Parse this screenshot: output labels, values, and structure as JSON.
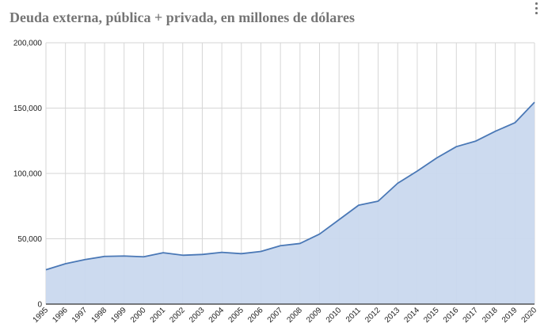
{
  "chart_data": {
    "type": "area",
    "title": "Deuda externa, pública + privada, en millones de dólares",
    "x": [
      "1995",
      "1996",
      "1997",
      "1998",
      "1999",
      "2000",
      "2001",
      "2002",
      "2003",
      "2004",
      "2005",
      "2006",
      "2007",
      "2008",
      "2009",
      "2010",
      "2011",
      "2012",
      "2013",
      "2014",
      "2015",
      "2016",
      "2017",
      "2018",
      "2019",
      "2020"
    ],
    "series": [
      {
        "values": [
          26300,
          30900,
          34100,
          36500,
          36800,
          36200,
          39300,
          37400,
          38000,
          39600,
          38600,
          40300,
          44700,
          46400,
          53600,
          64600,
          75700,
          78800,
          92500,
          101800,
          111900,
          120500,
          124800,
          132300,
          138800,
          154500
        ]
      }
    ],
    "ylim": [
      0,
      200000
    ],
    "yticks": [
      "0",
      "50,000",
      "100,000",
      "150,000",
      "200,000"
    ],
    "grid": true,
    "legend": "none",
    "colors": {
      "line": "#4a78b6",
      "fill": "#c9d8ee",
      "grid": "#d6d6d6",
      "title": "#757575"
    }
  },
  "menu": {
    "icon": "vertical-dots-icon"
  }
}
